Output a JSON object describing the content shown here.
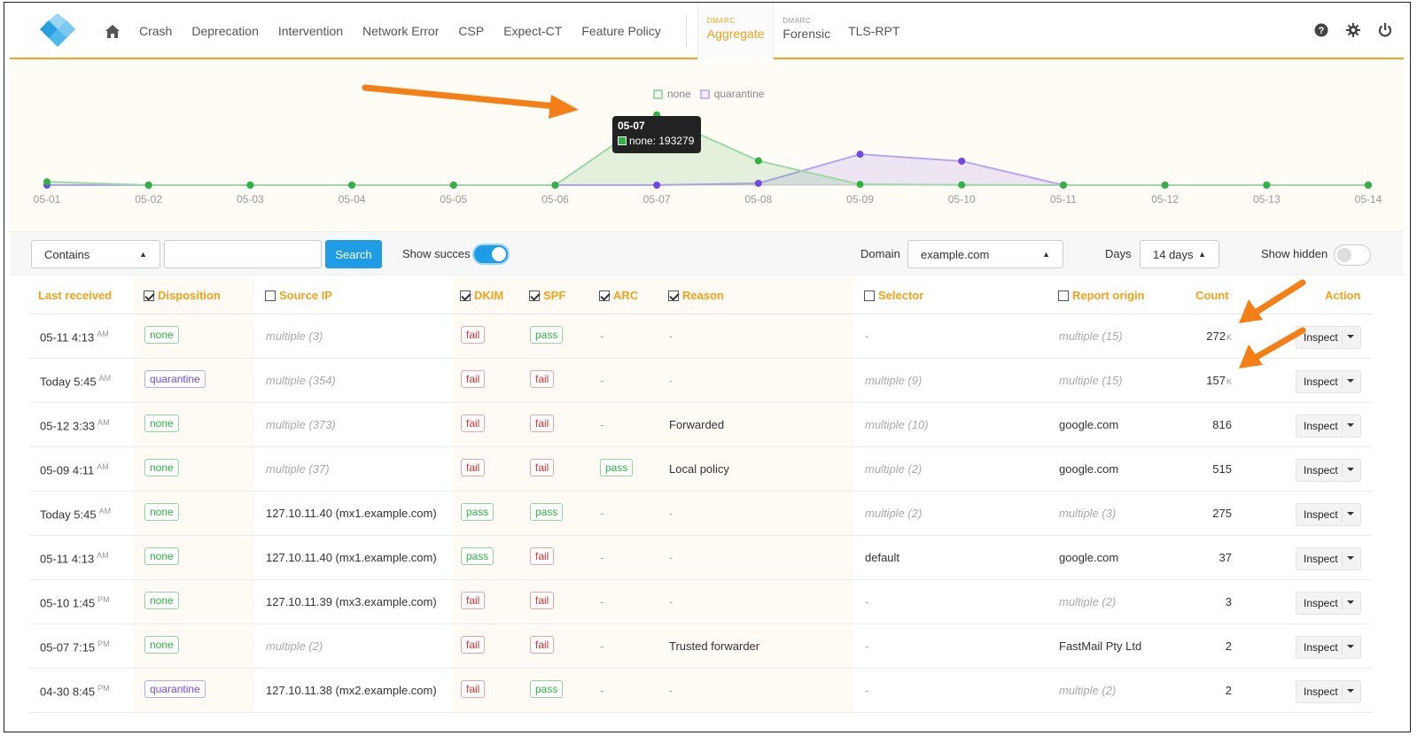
{
  "nav": {
    "items": [
      "Crash",
      "Deprecation",
      "Intervention",
      "Network Error",
      "CSP",
      "Expect-CT",
      "Feature Policy"
    ],
    "dmarc_sup": "DMARC",
    "aggregate": "Aggregate",
    "forensic_sup": "DMARC",
    "forensic": "Forensic",
    "tlsrpt": "TLS-RPT",
    "icons": [
      "home-icon",
      "help-icon",
      "gear-icon",
      "power-icon"
    ]
  },
  "chart_data": {
    "type": "area",
    "categories": [
      "05-01",
      "05-02",
      "05-03",
      "05-04",
      "05-05",
      "05-06",
      "05-07",
      "05-08",
      "05-09",
      "05-10",
      "05-11",
      "05-12",
      "05-13",
      "05-14"
    ],
    "series": [
      {
        "name": "none",
        "color": "#2fb344",
        "values": [
          9000,
          0,
          0,
          0,
          0,
          0,
          193279,
          67000,
          2000,
          500,
          0,
          0,
          0,
          0
        ]
      },
      {
        "name": "quarantine",
        "color": "#7048e8",
        "values": [
          0,
          0,
          0,
          0,
          0,
          0,
          0,
          5000,
          85000,
          66000,
          0,
          0,
          0,
          0
        ]
      }
    ],
    "ylim": [
      0,
      200000
    ],
    "grid": false,
    "legend": "top",
    "tooltip": {
      "title": "05-07",
      "text": "none: 193279"
    }
  },
  "filters": {
    "match_mode": "Contains",
    "search_value": "",
    "search_label": "Search",
    "show_success_label": "Show succes",
    "show_success": true,
    "domain_label": "Domain",
    "domain_value": "example.com",
    "days_label": "Days",
    "days_value": "14 days",
    "show_hidden_label": "Show hidden",
    "show_hidden": false
  },
  "table": {
    "headers": {
      "last_received": "Last received",
      "disposition": "Disposition",
      "source_ip": "Source IP",
      "dkim": "DKIM",
      "spf": "SPF",
      "arc": "ARC",
      "reason": "Reason",
      "selector": "Selector",
      "report_origin": "Report origin",
      "count": "Count",
      "action": "Action"
    },
    "header_checks": {
      "disposition": true,
      "source_ip": false,
      "dkim": true,
      "spf": true,
      "arc": true,
      "reason": true,
      "selector": false,
      "report_origin": false
    },
    "inspect_label": "Inspect",
    "rows": [
      {
        "time": "05-11 4:13",
        "ampm": "AM",
        "disp": "none",
        "ip": "multiple (3)",
        "ip_muted": true,
        "dkim": "fail",
        "spf": "pass",
        "arc": "-",
        "reason": "-",
        "selector": "-",
        "selector_muted": false,
        "origin": "multiple (15)",
        "origin_muted": true,
        "count": "272",
        "count_k": "K"
      },
      {
        "time": "Today 5:45",
        "ampm": "AM",
        "disp": "quarantine",
        "ip": "multiple (354)",
        "ip_muted": true,
        "dkim": "fail",
        "spf": "fail",
        "arc": "-",
        "reason": "-",
        "selector": "multiple (9)",
        "selector_muted": true,
        "origin": "multiple (15)",
        "origin_muted": true,
        "count": "157",
        "count_k": "K"
      },
      {
        "time": "05-12 3:33",
        "ampm": "AM",
        "disp": "none",
        "ip": "multiple (373)",
        "ip_muted": true,
        "dkim": "fail",
        "spf": "fail",
        "arc": "-",
        "reason": "Forwarded",
        "selector": "multiple (10)",
        "selector_muted": true,
        "origin": "google.com",
        "origin_muted": false,
        "count": "816",
        "count_k": ""
      },
      {
        "time": "05-09 4:11",
        "ampm": "AM",
        "disp": "none",
        "ip": "multiple (37)",
        "ip_muted": true,
        "dkim": "fail",
        "spf": "fail",
        "arc": "pass",
        "reason": "Local policy",
        "selector": "multiple (2)",
        "selector_muted": true,
        "origin": "google.com",
        "origin_muted": false,
        "count": "515",
        "count_k": ""
      },
      {
        "time": "Today 5:45",
        "ampm": "AM",
        "disp": "none",
        "ip": "127.10.11.40 (mx1.example.com)",
        "ip_muted": false,
        "dkim": "pass",
        "spf": "pass",
        "arc": "-",
        "reason": "-",
        "selector": "multiple (2)",
        "selector_muted": true,
        "origin": "multiple (3)",
        "origin_muted": true,
        "count": "275",
        "count_k": ""
      },
      {
        "time": "05-11 4:13",
        "ampm": "AM",
        "disp": "none",
        "ip": "127.10.11.40 (mx1.example.com)",
        "ip_muted": false,
        "dkim": "pass",
        "spf": "fail",
        "arc": "-",
        "reason": "-",
        "selector": "default",
        "selector_muted": false,
        "origin": "google.com",
        "origin_muted": false,
        "count": "37",
        "count_k": ""
      },
      {
        "time": "05-10 1:45",
        "ampm": "PM",
        "disp": "none",
        "ip": "127.10.11.39 (mx3.example.com)",
        "ip_muted": false,
        "dkim": "fail",
        "spf": "fail",
        "arc": "-",
        "reason": "-",
        "selector": "-",
        "selector_muted": false,
        "origin": "multiple (2)",
        "origin_muted": true,
        "count": "3",
        "count_k": ""
      },
      {
        "time": "05-07 7:15",
        "ampm": "PM",
        "disp": "none",
        "ip": "multiple (2)",
        "ip_muted": true,
        "dkim": "fail",
        "spf": "fail",
        "arc": "-",
        "reason": "Trusted forwarder",
        "selector": "-",
        "selector_muted": false,
        "origin": "FastMail Pty Ltd",
        "origin_muted": false,
        "count": "2",
        "count_k": ""
      },
      {
        "time": "04-30 8:45",
        "ampm": "PM",
        "disp": "quarantine",
        "ip": "127.10.11.38 (mx2.example.com)",
        "ip_muted": false,
        "dkim": "fail",
        "spf": "pass",
        "arc": "-",
        "reason": "-",
        "selector": "-",
        "selector_muted": false,
        "origin": "multiple (2)",
        "origin_muted": true,
        "count": "2",
        "count_k": ""
      }
    ]
  },
  "colors": {
    "accent": "#f6a21a",
    "primary": "#1e9ce6",
    "pass": "#2fb344",
    "fail": "#e03131",
    "quarantine": "#7048e8",
    "annotation_arrow": "#f57f17"
  }
}
